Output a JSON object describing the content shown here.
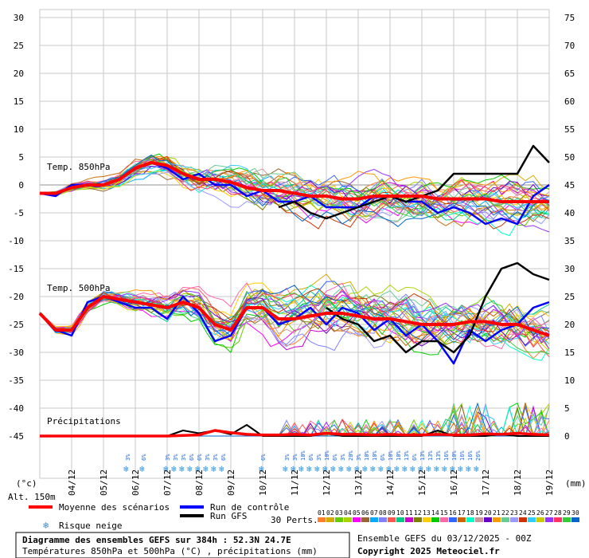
{
  "chart_data": {
    "type": "line",
    "title": "Diagramme des ensembles GEFS sur 384h : 52.3N 24.7E",
    "subtitle": "Températures 850hPa et 500hPa (°C) , précipitations (mm)",
    "left_axis_unit": "(°c)",
    "right_axis_unit": "(mm)",
    "altitude": "Alt. 150m",
    "left_ticks": [
      30,
      25,
      20,
      15,
      10,
      5,
      0,
      -5,
      -10,
      -15,
      -20,
      -25,
      -30,
      -35,
      -40,
      -45
    ],
    "right_ticks": [
      75,
      70,
      65,
      60,
      55,
      50,
      45,
      40,
      35,
      30,
      25,
      20,
      15,
      10,
      5,
      0
    ],
    "x_ticks": [
      "04/12",
      "05/12",
      "06/12",
      "07/12",
      "08/12",
      "09/12",
      "10/12",
      "11/12",
      "12/12",
      "13/12",
      "14/12",
      "15/12",
      "16/12",
      "17/12",
      "18/12",
      "19/12"
    ],
    "x_label_first": "(°c)",
    "section_labels": {
      "t850": "Temp. 850hPa",
      "t500": "Temp. 500hPa",
      "precip": "Précipitations"
    },
    "xlim_hours": [
      0,
      384
    ],
    "t850_mean": {
      "hours": [
        0,
        12,
        24,
        36,
        48,
        60,
        72,
        84,
        96,
        108,
        120,
        132,
        144,
        156,
        168,
        180,
        192,
        204,
        216,
        228,
        240,
        252,
        264,
        276,
        288,
        300,
        312,
        324,
        336,
        348,
        360,
        372,
        384
      ],
      "values": [
        -1.5,
        -1.5,
        -0.5,
        0,
        0,
        1,
        3,
        4,
        3.5,
        2,
        1,
        1,
        0.5,
        -0.5,
        -1,
        -1,
        -1.5,
        -2,
        -2,
        -2.5,
        -2.5,
        -2,
        -2,
        -2,
        -2,
        -2.5,
        -2.5,
        -2.5,
        -2.5,
        -3,
        -3,
        -3,
        -3
      ]
    },
    "t850_control": {
      "hours": [
        0,
        12,
        24,
        36,
        48,
        60,
        72,
        84,
        96,
        108,
        120,
        132,
        144,
        156,
        168,
        180,
        192,
        204,
        216,
        228,
        240,
        252,
        264,
        276,
        288,
        300,
        312,
        324,
        336,
        348,
        360,
        372,
        384
      ],
      "values": [
        -1.5,
        -2,
        0,
        0,
        0,
        1,
        3,
        4,
        3,
        1,
        2,
        0,
        0,
        -2,
        -1,
        -3,
        -3,
        -2,
        -4,
        -4,
        -4,
        -2,
        -2,
        -3,
        -3,
        -5,
        -4,
        -5,
        -7,
        -6,
        -7,
        -2,
        0
      ]
    },
    "t850_gfs": {
      "hours": [
        180,
        192,
        204,
        216,
        228,
        240,
        252,
        264,
        276,
        288,
        300,
        312,
        324,
        336,
        348,
        360,
        372,
        384
      ],
      "values": [
        -4,
        -3,
        -5,
        -6,
        -5,
        -4,
        -3,
        -2,
        -3,
        -2,
        -1,
        2,
        2,
        2,
        2,
        2,
        7,
        4
      ]
    },
    "t500_mean": {
      "hours": [
        0,
        12,
        24,
        36,
        48,
        60,
        72,
        84,
        96,
        108,
        120,
        132,
        144,
        156,
        168,
        180,
        192,
        204,
        216,
        228,
        240,
        252,
        264,
        276,
        288,
        300,
        312,
        324,
        336,
        348,
        360,
        372,
        384
      ],
      "values": [
        -23,
        -26,
        -26,
        -22,
        -20,
        -20.5,
        -21,
        -21.5,
        -22,
        -21,
        -22,
        -25,
        -26,
        -22,
        -22,
        -24,
        -24,
        -23.5,
        -23,
        -23,
        -23.5,
        -24,
        -24,
        -24.5,
        -25,
        -25,
        -25,
        -24.5,
        -24.5,
        -25,
        -25,
        -26,
        -27
      ]
    },
    "t500_control": {
      "hours": [
        0,
        12,
        24,
        36,
        48,
        60,
        72,
        84,
        96,
        108,
        120,
        132,
        144,
        156,
        168,
        180,
        192,
        204,
        216,
        228,
        240,
        252,
        264,
        276,
        288,
        300,
        312,
        324,
        336,
        348,
        360,
        372,
        384
      ],
      "values": [
        -23,
        -26,
        -27,
        -21,
        -20,
        -21,
        -22,
        -22,
        -24,
        -20,
        -23,
        -28,
        -27,
        -22,
        -22,
        -25,
        -24,
        -22,
        -25,
        -22,
        -23,
        -26,
        -24,
        -27,
        -25,
        -28,
        -32,
        -26,
        -28,
        -26,
        -25,
        -22,
        -21
      ]
    },
    "t500_gfs": {
      "hours": [
        216,
        228,
        240,
        252,
        264,
        276,
        288,
        300,
        312,
        324,
        336,
        348,
        360,
        372,
        384
      ],
      "values": [
        -22,
        -24,
        -25,
        -28,
        -27,
        -30,
        -28,
        -28,
        -30,
        -27,
        -20,
        -15,
        -14,
        -16,
        -17
      ]
    },
    "precip_mean": {
      "hours": [
        0,
        12,
        24,
        36,
        48,
        60,
        72,
        84,
        96,
        108,
        120,
        132,
        144,
        156,
        168,
        180,
        192,
        204,
        216,
        228,
        240,
        252,
        264,
        276,
        288,
        300,
        312,
        324,
        336,
        348,
        360,
        372,
        384
      ],
      "values": [
        0,
        0,
        0,
        0,
        0,
        0,
        0,
        0,
        0,
        0.1,
        0.2,
        1,
        0.6,
        0.3,
        0.2,
        0.2,
        0.3,
        0.2,
        0.5,
        0.3,
        0.3,
        0.2,
        0.3,
        0.2,
        0.2,
        0.3,
        0.2,
        0.2,
        0.4,
        0.3,
        0.5,
        0.3,
        0.2
      ]
    },
    "precip_gfs": {
      "hours": [
        96,
        108,
        120,
        132,
        144,
        156,
        168,
        180,
        192,
        204,
        216,
        228,
        240,
        252,
        264,
        276,
        288,
        300,
        312,
        324,
        336,
        348,
        360,
        372,
        384
      ],
      "values": [
        0,
        1,
        0.5,
        1,
        0.3,
        2,
        0,
        0,
        0,
        0,
        0.5,
        0,
        0,
        0,
        0,
        0,
        0,
        1,
        0,
        0,
        0,
        0.3,
        0,
        0,
        0
      ]
    },
    "snow_risk_labels": [
      "3%",
      "6%",
      "3%",
      "3%",
      "3%",
      "6%",
      "6%",
      "3%",
      "3%",
      "6%",
      "6%",
      "3%",
      "3%",
      "10%",
      "6%",
      "3%",
      "10%",
      "6%",
      "3%",
      "20%",
      "3%",
      "10%",
      "10%",
      "6%",
      "10%",
      "10%",
      "13%",
      "6%",
      "13%",
      "13%",
      "13%",
      "16%",
      "10%",
      "16%",
      "16%",
      "26%"
    ],
    "legend": {
      "mean": "Moyenne des scénarios",
      "control": "Run de contrôle",
      "gfs": "Run GFS",
      "snow": "Risque neige",
      "perts": "30 Perts.",
      "pert_numbers": [
        "01",
        "02",
        "03",
        "04",
        "05",
        "06",
        "07",
        "08",
        "09",
        "10",
        "11",
        "12",
        "13",
        "14",
        "15",
        "16",
        "17",
        "18",
        "19",
        "20",
        "21",
        "22",
        "23",
        "24",
        "25",
        "26",
        "27",
        "28",
        "29",
        "30"
      ],
      "pert_colors": [
        "#ff7f2a",
        "#d4aa00",
        "#66cc00",
        "#aad400",
        "#ff00ff",
        "#996633",
        "#00aaff",
        "#8080ff",
        "#ff5555",
        "#00cc88",
        "#cc00cc",
        "#7f7f00",
        "#ffcc00",
        "#00cc00",
        "#ff66aa",
        "#3366ff",
        "#cc6600",
        "#00ffcc",
        "#cc9999",
        "#6600cc",
        "#ff9900",
        "#66cc99",
        "#9999ff",
        "#cc3300",
        "#33ccff",
        "#cccc00",
        "#9933ff",
        "#ff3366",
        "#33cc33",
        "#0066cc"
      ]
    },
    "footer_right_line1": "Ensemble GEFS du 03/12/2025 - 00Z",
    "footer_right_line2": "Copyright 2025 Meteociel.fr",
    "colors": {
      "mean": "#ff0000",
      "control": "#0000ff",
      "gfs": "#000000",
      "grid": "#c0c0c0"
    }
  }
}
